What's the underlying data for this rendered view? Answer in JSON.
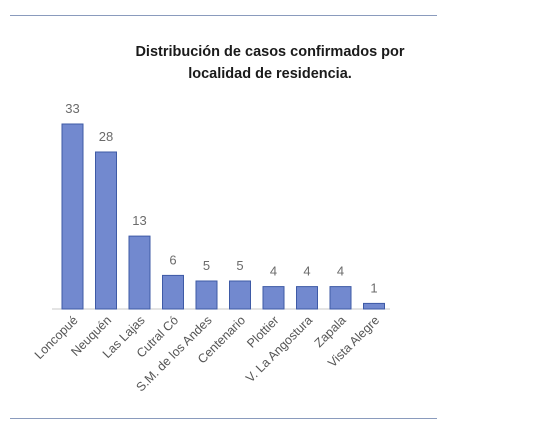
{
  "chart_data": {
    "type": "bar",
    "title_line1": "Distribución de casos confirmados por",
    "title_line2": "localidad de residencia.",
    "categories": [
      "Loncopué",
      "Neuquén",
      "Las Lajas",
      "Cutral Có",
      "S.M. de los Andes",
      "Centenario",
      "Plottier",
      "V. La Angostura",
      "Zapala",
      "Vista Alegre"
    ],
    "values": [
      33,
      28,
      13,
      6,
      5,
      5,
      4,
      4,
      4,
      1
    ],
    "xlabel": "",
    "ylabel": "",
    "ylim": [
      0,
      33
    ],
    "grid": false,
    "legend": "none",
    "bar_color": "#7289cf",
    "bar_edge_color": "#3e5aa6"
  }
}
